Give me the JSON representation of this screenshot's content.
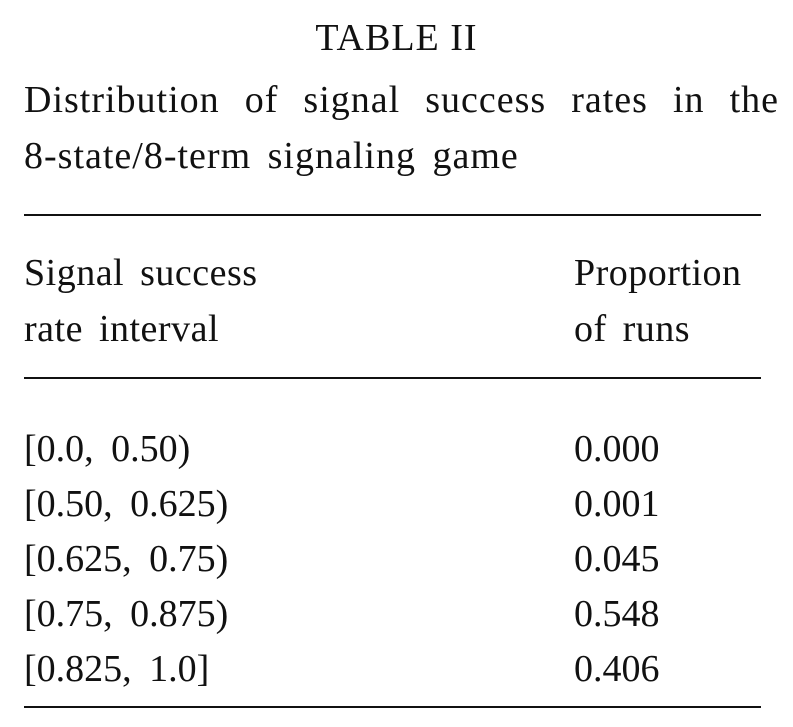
{
  "table": {
    "label": "TABLE II",
    "caption_line1": "Distribution of signal success rates in the",
    "caption_line2": "8-state/8-term signaling game",
    "header": {
      "col1_line1": "Signal success",
      "col1_line2": "rate interval",
      "col2_line1": "Proportion",
      "col2_line2": "of runs"
    },
    "rows": [
      {
        "interval": "[0.0, 0.50)",
        "proportion": "0.000"
      },
      {
        "interval": "[0.50, 0.625)",
        "proportion": "0.001"
      },
      {
        "interval": "[0.625, 0.75)",
        "proportion": "0.045"
      },
      {
        "interval": "[0.75, 0.875)",
        "proportion": "0.548"
      },
      {
        "interval": "[0.825, 1.0]",
        "proportion": "0.406"
      }
    ]
  }
}
